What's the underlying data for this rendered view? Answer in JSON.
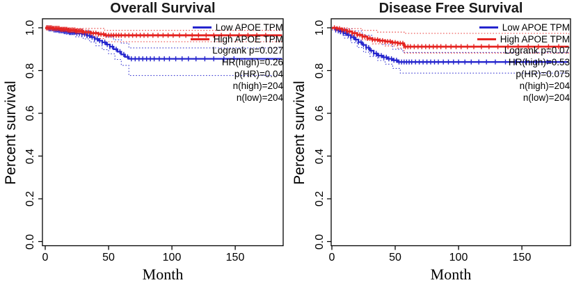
{
  "chart_data": [
    {
      "type": "line",
      "subtype": "kaplan-meier",
      "title": "Overall Survival",
      "xlabel": "Month",
      "ylabel": "Percent survival",
      "xlim": [
        0,
        187
      ],
      "ylim": [
        0,
        1.02
      ],
      "xticks": [
        "0",
        "50",
        "100",
        "150"
      ],
      "yticks": [
        "1.0",
        "0.8",
        "0.6",
        "0.4",
        "0.2",
        "0.0"
      ],
      "grid": false,
      "legend_position": "top-right",
      "stats": [
        "Logrank p=0.027",
        "HR(high)=0.26",
        "p(HR)=0.04",
        "n(high)=204",
        "n(low)=204"
      ],
      "series": [
        {
          "name": "Low APOE TPM",
          "color": "#2525cd",
          "steps": [
            [
              0,
              1
            ],
            [
              3,
              0.995
            ],
            [
              7,
              0.99
            ],
            [
              11,
              0.986
            ],
            [
              15,
              0.982
            ],
            [
              19,
              0.978
            ],
            [
              24,
              0.974
            ],
            [
              29,
              0.97
            ],
            [
              33,
              0.963
            ],
            [
              36,
              0.956
            ],
            [
              39,
              0.948
            ],
            [
              42,
              0.94
            ],
            [
              45,
              0.932
            ],
            [
              48,
              0.922
            ],
            [
              51,
              0.912
            ],
            [
              54,
              0.9
            ],
            [
              57,
              0.888
            ],
            [
              60,
              0.875
            ],
            [
              63,
              0.864
            ],
            [
              66,
              0.855
            ],
            [
              187,
              0.855
            ]
          ],
          "ci_upper": [
            [
              0,
              1
            ],
            [
              10,
              0.998
            ],
            [
              20,
              0.993
            ],
            [
              30,
              0.987
            ],
            [
              36,
              0.979
            ],
            [
              42,
              0.97
            ],
            [
              48,
              0.958
            ],
            [
              54,
              0.944
            ],
            [
              60,
              0.928
            ],
            [
              66,
              0.906
            ],
            [
              187,
              0.906
            ]
          ],
          "ci_lower": [
            [
              0,
              0.995
            ],
            [
              8,
              0.982
            ],
            [
              16,
              0.97
            ],
            [
              24,
              0.958
            ],
            [
              30,
              0.948
            ],
            [
              35,
              0.934
            ],
            [
              40,
              0.916
            ],
            [
              45,
              0.898
            ],
            [
              50,
              0.878
            ],
            [
              55,
              0.852
            ],
            [
              60,
              0.824
            ],
            [
              66,
              0.777
            ],
            [
              187,
              0.777
            ]
          ],
          "censor_months": [
            2,
            3,
            4,
            5,
            6,
            7,
            8,
            9,
            10,
            11,
            12,
            13,
            14,
            15,
            16,
            17,
            18,
            19,
            20,
            21,
            22,
            23,
            25,
            27,
            29,
            31,
            33,
            35,
            37,
            39,
            41,
            43,
            45,
            47,
            49,
            51,
            53,
            56,
            59,
            62,
            65,
            68,
            71,
            74,
            77,
            80,
            83,
            86,
            90,
            94,
            98,
            103,
            108,
            113,
            119,
            126,
            133,
            141,
            149
          ]
        },
        {
          "name": "High APOE TPM",
          "color": "#e52421",
          "steps": [
            [
              0,
              1
            ],
            [
              6,
              0.997
            ],
            [
              12,
              0.993
            ],
            [
              18,
              0.989
            ],
            [
              24,
              0.985
            ],
            [
              30,
              0.98
            ],
            [
              36,
              0.975
            ],
            [
              42,
              0.97
            ],
            [
              47,
              0.965
            ],
            [
              187,
              0.965
            ]
          ],
          "ci_upper": [
            [
              0,
              1
            ],
            [
              25,
              0.997
            ],
            [
              47,
              0.988
            ],
            [
              187,
              0.988
            ]
          ],
          "ci_lower": [
            [
              0,
              0.995
            ],
            [
              8,
              0.988
            ],
            [
              16,
              0.98
            ],
            [
              24,
              0.971
            ],
            [
              32,
              0.961
            ],
            [
              40,
              0.95
            ],
            [
              47,
              0.935
            ],
            [
              187,
              0.93
            ]
          ],
          "censor_months": [
            1,
            2,
            3,
            4,
            5,
            6,
            7,
            8,
            9,
            10,
            11,
            12,
            13,
            14,
            15,
            16,
            17,
            18,
            19,
            20,
            21,
            22,
            23,
            24,
            25,
            26,
            27,
            28,
            29,
            30,
            32,
            34,
            36,
            38,
            40,
            42,
            44,
            46,
            48,
            50,
            52,
            54,
            56,
            58,
            60,
            63,
            66,
            69,
            72,
            75,
            78,
            81,
            85,
            89,
            93,
            97,
            101,
            106,
            111,
            116,
            121,
            127,
            133,
            139,
            146,
            153,
            160,
            167,
            174
          ]
        }
      ]
    },
    {
      "type": "line",
      "subtype": "kaplan-meier",
      "title": "Disease Free Survival",
      "xlabel": "Month",
      "ylabel": "Percent survival",
      "xlim": [
        0,
        187
      ],
      "ylim": [
        0,
        1.02
      ],
      "xticks": [
        "0",
        "50",
        "100",
        "150"
      ],
      "yticks": [
        "1.0",
        "0.8",
        "0.6",
        "0.4",
        "0.2",
        "0.0"
      ],
      "grid": false,
      "legend_position": "top-right",
      "stats": [
        "Logrank p=0.07",
        "HR(high)=0.53",
        "p(HR)=0.075",
        "n(high)=204",
        "n(low)=204"
      ],
      "series": [
        {
          "name": "Low APOE TPM",
          "color": "#2525cd",
          "steps": [
            [
              0,
              1
            ],
            [
              3,
              0.99
            ],
            [
              6,
              0.982
            ],
            [
              9,
              0.974
            ],
            [
              12,
              0.966
            ],
            [
              15,
              0.956
            ],
            [
              18,
              0.945
            ],
            [
              21,
              0.933
            ],
            [
              24,
              0.92
            ],
            [
              27,
              0.907
            ],
            [
              30,
              0.893
            ],
            [
              33,
              0.88
            ],
            [
              36,
              0.87
            ],
            [
              40,
              0.862
            ],
            [
              44,
              0.855
            ],
            [
              48,
              0.848
            ],
            [
              52,
              0.84
            ],
            [
              187,
              0.84
            ]
          ],
          "ci_upper": [
            [
              0,
              1
            ],
            [
              8,
              0.995
            ],
            [
              16,
              0.985
            ],
            [
              24,
              0.965
            ],
            [
              32,
              0.943
            ],
            [
              40,
              0.922
            ],
            [
              48,
              0.9
            ],
            [
              56,
              0.885
            ],
            [
              187,
              0.883
            ]
          ],
          "ci_lower": [
            [
              0,
              0.99
            ],
            [
              5,
              0.972
            ],
            [
              10,
              0.952
            ],
            [
              15,
              0.93
            ],
            [
              20,
              0.908
            ],
            [
              25,
              0.886
            ],
            [
              30,
              0.866
            ],
            [
              36,
              0.847
            ],
            [
              42,
              0.83
            ],
            [
              48,
              0.81
            ],
            [
              54,
              0.788
            ],
            [
              187,
              0.785
            ]
          ],
          "censor_months": [
            3,
            5,
            7,
            9,
            11,
            13,
            15,
            17,
            19,
            21,
            23,
            25,
            27,
            29,
            31,
            33,
            35,
            37,
            39,
            41,
            43,
            45,
            47,
            49,
            51,
            53,
            55,
            57,
            59,
            61,
            63,
            66,
            69,
            72,
            75,
            78,
            81,
            84,
            88,
            92,
            96,
            100,
            105,
            110,
            116,
            122,
            129,
            137,
            145,
            153,
            161,
            170
          ]
        },
        {
          "name": "High APOE TPM",
          "color": "#e52421",
          "steps": [
            [
              0,
              1
            ],
            [
              4,
              0.996
            ],
            [
              8,
              0.99
            ],
            [
              12,
              0.983
            ],
            [
              16,
              0.975
            ],
            [
              20,
              0.967
            ],
            [
              24,
              0.959
            ],
            [
              28,
              0.951
            ],
            [
              32,
              0.944
            ],
            [
              37,
              0.94
            ],
            [
              42,
              0.936
            ],
            [
              47,
              0.931
            ],
            [
              52,
              0.927
            ],
            [
              57,
              0.912
            ],
            [
              187,
              0.912
            ]
          ],
          "ci_upper": [
            [
              0,
              1
            ],
            [
              12,
              0.996
            ],
            [
              24,
              0.988
            ],
            [
              36,
              0.98
            ],
            [
              57,
              0.974
            ],
            [
              187,
              0.97
            ]
          ],
          "ci_lower": [
            [
              0,
              0.995
            ],
            [
              8,
              0.98
            ],
            [
              16,
              0.962
            ],
            [
              24,
              0.944
            ],
            [
              32,
              0.925
            ],
            [
              42,
              0.915
            ],
            [
              52,
              0.905
            ],
            [
              57,
              0.882
            ],
            [
              187,
              0.878
            ]
          ],
          "censor_months": [
            2,
            4,
            6,
            8,
            10,
            12,
            14,
            16,
            18,
            20,
            22,
            24,
            26,
            28,
            30,
            32,
            34,
            36,
            38,
            40,
            42,
            44,
            46,
            48,
            50,
            52,
            54,
            56,
            58,
            60,
            62,
            65,
            68,
            71,
            74,
            77,
            80,
            83,
            86,
            90,
            94,
            98,
            102,
            107,
            112,
            118,
            124,
            131,
            139,
            147,
            155,
            163,
            171,
            179
          ]
        }
      ]
    }
  ]
}
